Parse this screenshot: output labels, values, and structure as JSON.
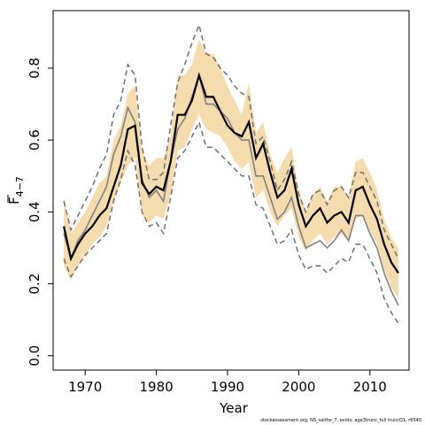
{
  "chart_data": {
    "type": "line",
    "xlabel": "Year",
    "ylabel_main": "F",
    "ylabel_sub": "4−7",
    "xlim": [
      1965.5,
      2015.5
    ],
    "ylim": [
      -0.04,
      0.96
    ],
    "x_ticks": [
      1970,
      1980,
      1990,
      2000,
      2010
    ],
    "y_ticks": [
      0.0,
      0.2,
      0.4,
      0.6,
      0.8
    ],
    "y_tick_labels": [
      "0.0",
      "0.2",
      "0.4",
      "0.6",
      "0.8"
    ],
    "grid": false,
    "colors": {
      "band": "#f5dcae",
      "mean": "#000000",
      "gray": "#808080",
      "dashed": "#707070"
    },
    "x": [
      1967,
      1968,
      1969,
      1970,
      1971,
      1972,
      1973,
      1974,
      1975,
      1976,
      1977,
      1978,
      1979,
      1980,
      1981,
      1982,
      1983,
      1984,
      1985,
      1986,
      1987,
      1988,
      1989,
      1990,
      1991,
      1992,
      1993,
      1994,
      1995,
      1996,
      1997,
      1998,
      1999,
      2000,
      2001,
      2002,
      2003,
      2004,
      2005,
      2006,
      2007,
      2008,
      2009,
      2010,
      2011,
      2012,
      2013,
      2014
    ],
    "series": [
      {
        "role": "band_upper",
        "values": [
          0.44,
          0.34,
          0.37,
          0.4,
          0.44,
          0.48,
          0.5,
          0.6,
          0.64,
          0.73,
          0.75,
          0.57,
          0.53,
          0.55,
          0.55,
          0.61,
          0.78,
          0.78,
          0.81,
          0.88,
          0.84,
          0.84,
          0.8,
          0.75,
          0.71,
          0.67,
          0.76,
          0.62,
          0.65,
          0.56,
          0.51,
          0.55,
          0.58,
          0.46,
          0.4,
          0.45,
          0.47,
          0.43,
          0.47,
          0.47,
          0.44,
          0.54,
          0.55,
          0.51,
          0.46,
          0.38,
          0.33,
          0.3
        ]
      },
      {
        "role": "band_lower",
        "values": [
          0.25,
          0.21,
          0.25,
          0.28,
          0.31,
          0.33,
          0.36,
          0.43,
          0.48,
          0.53,
          0.55,
          0.39,
          0.37,
          0.39,
          0.38,
          0.45,
          0.57,
          0.58,
          0.63,
          0.67,
          0.63,
          0.62,
          0.61,
          0.58,
          0.54,
          0.52,
          0.54,
          0.44,
          0.46,
          0.4,
          0.36,
          0.39,
          0.41,
          0.33,
          0.29,
          0.32,
          0.34,
          0.31,
          0.33,
          0.34,
          0.32,
          0.38,
          0.39,
          0.35,
          0.31,
          0.24,
          0.19,
          0.16
        ]
      },
      {
        "role": "dashed_upper",
        "values": [
          0.43,
          0.35,
          0.39,
          0.43,
          0.47,
          0.52,
          0.56,
          0.67,
          0.71,
          0.81,
          0.78,
          0.58,
          0.49,
          0.49,
          0.51,
          0.64,
          0.76,
          0.81,
          0.87,
          0.92,
          0.84,
          0.83,
          0.8,
          0.78,
          0.75,
          0.73,
          0.72,
          0.59,
          0.61,
          0.54,
          0.46,
          0.49,
          0.54,
          0.45,
          0.4,
          0.45,
          0.46,
          0.42,
          0.46,
          0.47,
          0.44,
          0.51,
          0.51,
          0.47,
          0.43,
          0.35,
          0.31,
          0.27
        ]
      },
      {
        "role": "dashed_lower",
        "values": [
          0.27,
          0.22,
          0.25,
          0.28,
          0.3,
          0.32,
          0.34,
          0.43,
          0.49,
          0.57,
          0.53,
          0.4,
          0.36,
          0.37,
          0.34,
          0.44,
          0.55,
          0.57,
          0.61,
          0.65,
          0.58,
          0.58,
          0.56,
          0.54,
          0.52,
          0.5,
          0.5,
          0.42,
          0.41,
          0.36,
          0.31,
          0.32,
          0.35,
          0.28,
          0.24,
          0.25,
          0.25,
          0.23,
          0.25,
          0.27,
          0.26,
          0.31,
          0.31,
          0.27,
          0.23,
          0.16,
          0.12,
          0.09
        ]
      },
      {
        "role": "gray",
        "values": [
          0.34,
          0.27,
          0.32,
          0.35,
          0.39,
          0.43,
          0.47,
          0.56,
          0.61,
          0.69,
          0.65,
          0.49,
          0.44,
          0.46,
          0.43,
          0.54,
          0.63,
          0.66,
          0.72,
          0.78,
          0.7,
          0.7,
          0.68,
          0.66,
          0.62,
          0.6,
          0.6,
          0.5,
          0.5,
          0.44,
          0.38,
          0.4,
          0.44,
          0.36,
          0.3,
          0.31,
          0.32,
          0.3,
          0.32,
          0.35,
          0.32,
          0.39,
          0.39,
          0.34,
          0.3,
          0.23,
          0.18,
          0.14
        ]
      },
      {
        "role": "mean",
        "values": [
          0.36,
          0.27,
          0.31,
          0.34,
          0.36,
          0.39,
          0.41,
          0.47,
          0.53,
          0.63,
          0.64,
          0.48,
          0.45,
          0.47,
          0.46,
          0.54,
          0.67,
          0.67,
          0.71,
          0.78,
          0.72,
          0.72,
          0.68,
          0.64,
          0.62,
          0.61,
          0.65,
          0.55,
          0.59,
          0.51,
          0.44,
          0.46,
          0.52,
          0.42,
          0.36,
          0.39,
          0.41,
          0.37,
          0.39,
          0.4,
          0.37,
          0.46,
          0.47,
          0.42,
          0.38,
          0.31,
          0.26,
          0.23
        ]
      }
    ]
  },
  "footer": "stockassessment.org, NS_saithe_7, exidx: age3trunc_full truncQ1, r6540"
}
